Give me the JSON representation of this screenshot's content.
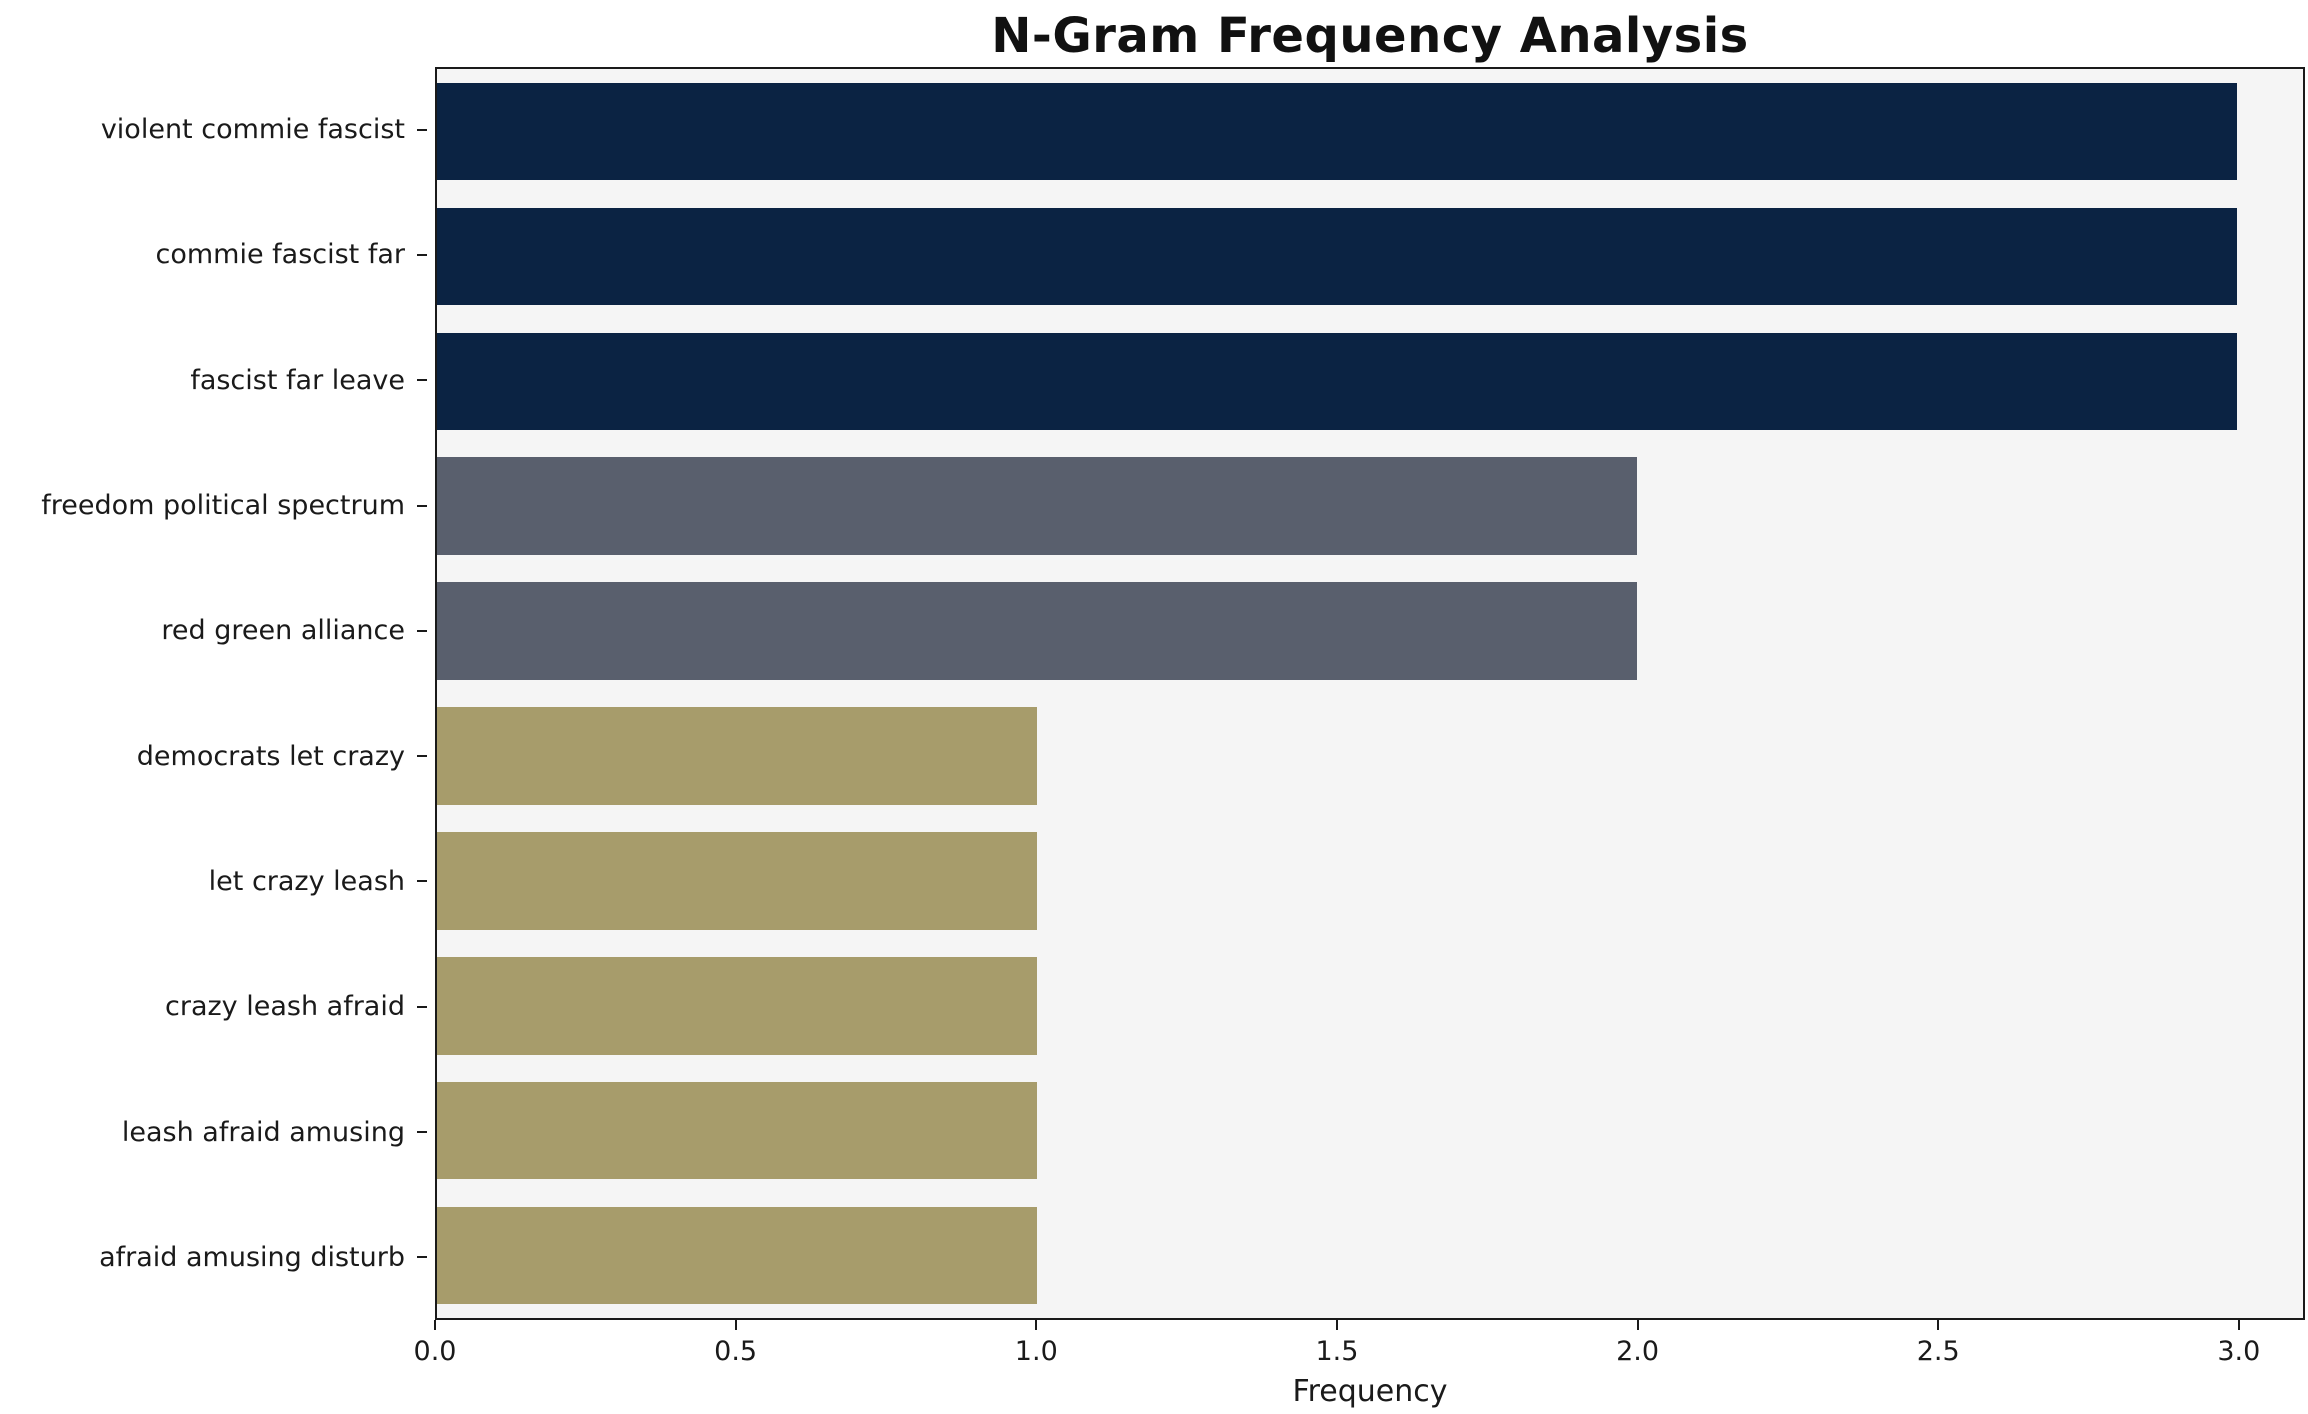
{
  "chart_data": {
    "type": "bar",
    "orientation": "horizontal",
    "title": "N-Gram Frequency Analysis",
    "xlabel": "Frequency",
    "ylabel": "",
    "categories": [
      "violent commie fascist",
      "commie fascist far",
      "fascist far leave",
      "freedom political spectrum",
      "red green alliance",
      "democrats let crazy",
      "let crazy leash",
      "crazy leash afraid",
      "leash afraid amusing",
      "afraid amusing disturb"
    ],
    "values": [
      3,
      3,
      3,
      2,
      2,
      1,
      1,
      1,
      1,
      1
    ],
    "bar_colors": [
      "#0b2343",
      "#0b2343",
      "#0b2343",
      "#595f6d",
      "#595f6d",
      "#a79c6b",
      "#a79c6b",
      "#a79c6b",
      "#a79c6b",
      "#a79c6b"
    ],
    "xlim": [
      0,
      3.11
    ],
    "xticks": [
      0.0,
      0.5,
      1.0,
      1.5,
      2.0,
      2.5,
      3.0
    ],
    "xtick_labels": [
      "0.0",
      "0.5",
      "1.0",
      "1.5",
      "2.0",
      "2.5",
      "3.0"
    ],
    "grid": false,
    "legend": false,
    "plot_background": "#f5f5f5",
    "figure_background": "#ffffff",
    "colors": {
      "freq3": "#0b2343",
      "freq2": "#595f6d",
      "freq1": "#a79c6b"
    }
  }
}
